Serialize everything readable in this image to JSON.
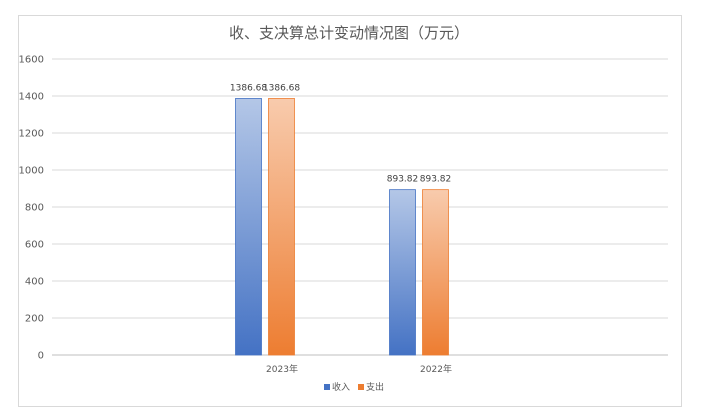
{
  "chart_data": {
    "type": "bar",
    "title": "收、支决算总计变动情况图（万元）",
    "categories": [
      "2023年",
      "2022年"
    ],
    "series": [
      {
        "name": "收入",
        "values": [
          1386.68,
          893.82
        ],
        "color": "#4472c4"
      },
      {
        "name": "支出",
        "values": [
          1386.68,
          893.82
        ],
        "color": "#ed7d31"
      }
    ],
    "data_labels": [
      [
        "1386.68",
        "893.82"
      ],
      [
        "1386.68",
        "893.82"
      ]
    ],
    "ylim": [
      0,
      1600
    ],
    "yticks": [
      0,
      200,
      400,
      600,
      800,
      1000,
      1200,
      1400,
      1600
    ],
    "grid": true,
    "legend_position": "bottom"
  }
}
